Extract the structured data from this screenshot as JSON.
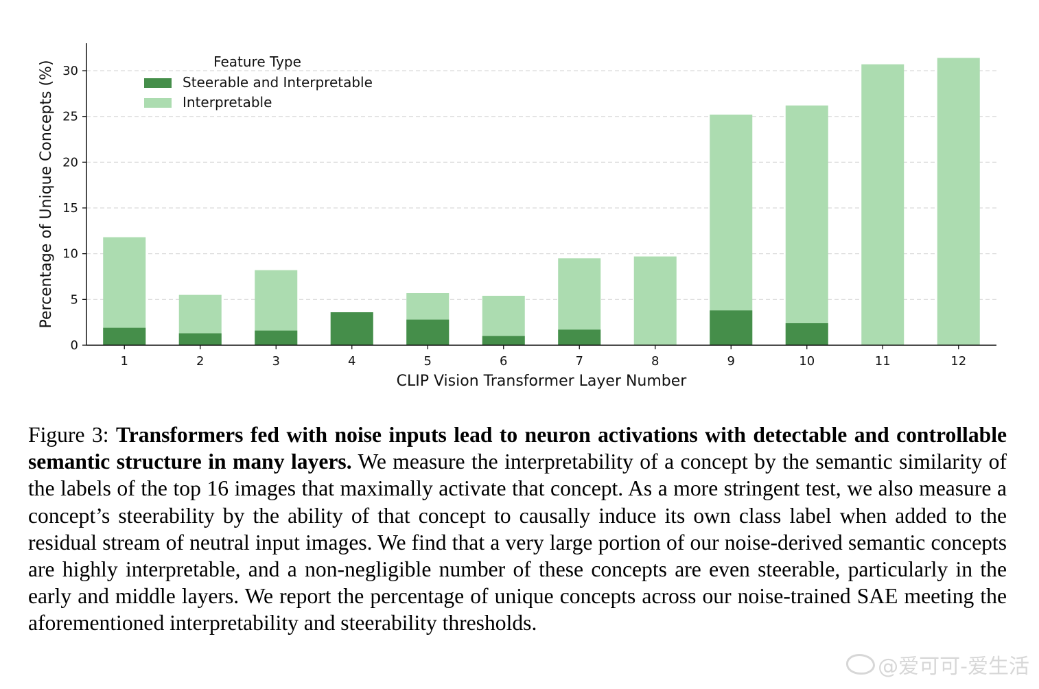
{
  "chart_data": {
    "type": "bar",
    "stacked": false,
    "categories": [
      "1",
      "2",
      "3",
      "4",
      "5",
      "6",
      "7",
      "8",
      "9",
      "10",
      "11",
      "12"
    ],
    "series": [
      {
        "name": "Steerable and Interpretable",
        "color": "#458e4a",
        "values": [
          1.9,
          1.3,
          1.6,
          3.6,
          2.8,
          1.0,
          1.7,
          0.0,
          3.8,
          2.4,
          0.0,
          0.0
        ]
      },
      {
        "name": "Interpretable",
        "color": "#acdcb0",
        "values": [
          11.8,
          5.5,
          8.2,
          3.6,
          5.7,
          5.4,
          9.5,
          9.7,
          25.2,
          26.2,
          30.7,
          31.4
        ]
      }
    ],
    "legend_title": "Feature Type",
    "legend_position": "top-left",
    "xlabel": "CLIP Vision Transformer Layer Number",
    "ylabel": "Percentage of Unique Concepts (%)",
    "ylim": [
      0,
      33
    ],
    "yticks": [
      "0",
      "5",
      "10",
      "15",
      "20",
      "25",
      "30"
    ],
    "grid": "horizontal dashed"
  },
  "caption": {
    "label": "Figure 3:",
    "bold": "Transformers fed with noise inputs lead to neuron activations with detectable and controllable semantic structure in many layers.",
    "text": "We measure the interpretability of a concept by the semantic similarity of the labels of the top 16 images that maximally activate that concept. As a more stringent test, we also measure a concept’s steerability by the ability of that concept to causally induce its own class label when added to the residual stream of neutral input images. We find that a very large portion of our noise-derived semantic concepts are highly interpretable, and a non-negligible number of these concepts are even steerable, particularly in the early and middle layers.  We report the percentage of unique concepts across our noise-trained SAE meeting the aforementioned interpretability and steerability thresholds."
  },
  "watermark": "@爱可可-爱生活"
}
